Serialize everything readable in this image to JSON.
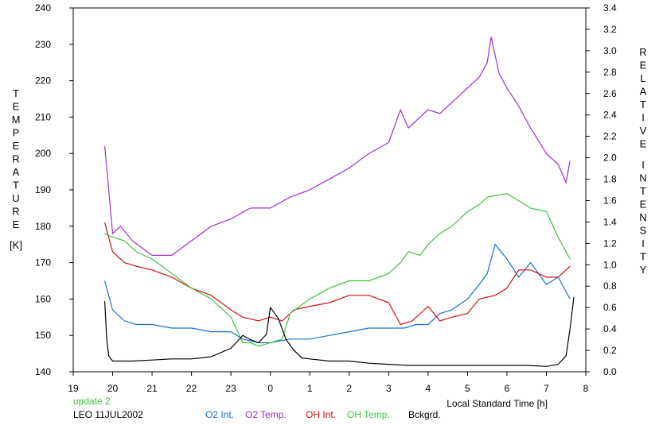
{
  "chart_data": {
    "type": "line",
    "ylabel_left": "TEMPERATURE",
    "ylabel_left_unit": "[K]",
    "ylabel_right": "RELATIVE INTENSITY",
    "xlabel": "Local Standard Time [h]",
    "left_ticks": [
      "140",
      "150",
      "160",
      "170",
      "180",
      "190",
      "200",
      "210",
      "220",
      "230",
      "240"
    ],
    "right_ticks": [
      "0.0",
      "0.2",
      "0.4",
      "0.6",
      "0.8",
      "1.0",
      "1.2",
      "1.4",
      "1.6",
      "1.8",
      "2.0",
      "2.2",
      "2.4",
      "2.6",
      "2.8",
      "3.0",
      "3.2",
      "3.4"
    ],
    "x_ticks": [
      "19",
      "20",
      "21",
      "22",
      "23",
      "0",
      "1",
      "2",
      "3",
      "4",
      "5",
      "6",
      "7",
      "8"
    ],
    "ylim_left": [
      140,
      240
    ],
    "ylim_right": [
      0.0,
      3.4
    ],
    "xlim_hours": [
      19,
      32
    ],
    "grid": false,
    "series": [
      {
        "name": "O2 Int.",
        "color": "#1a6fd0",
        "axis": "left",
        "x": [
          19.8,
          20.0,
          20.3,
          20.6,
          21.0,
          21.5,
          22.0,
          22.5,
          23.0,
          23.3,
          23.7,
          24.0,
          24.5,
          25.0,
          25.5,
          26.0,
          26.5,
          27.0,
          27.4,
          27.7,
          28.0,
          28.3,
          28.6,
          29.0,
          29.3,
          29.5,
          29.7,
          30.0,
          30.3,
          30.6,
          31.0,
          31.3,
          31.6
        ],
        "values": [
          165,
          157,
          154,
          153,
          153,
          152,
          152,
          151,
          151,
          149,
          148,
          148,
          149,
          149,
          150,
          151,
          152,
          152,
          152,
          153,
          153,
          156,
          157,
          160,
          164,
          167,
          175,
          171,
          166,
          170,
          164,
          166,
          160
        ]
      },
      {
        "name": "O2 Temp.",
        "color": "#9b30d0",
        "axis": "left",
        "x": [
          19.8,
          19.9,
          20.0,
          20.2,
          20.5,
          21.0,
          21.5,
          22.0,
          22.5,
          23.0,
          23.5,
          24.0,
          24.5,
          25.0,
          25.5,
          26.0,
          26.5,
          27.0,
          27.3,
          27.5,
          27.8,
          28.0,
          28.3,
          28.6,
          29.0,
          29.3,
          29.5,
          29.6,
          29.8,
          30.0,
          30.3,
          30.6,
          31.0,
          31.3,
          31.5,
          31.6
        ],
        "values": [
          202,
          190,
          178,
          180,
          176,
          172,
          172,
          176,
          180,
          182,
          185,
          185,
          188,
          190,
          193,
          196,
          200,
          203,
          212,
          207,
          210,
          212,
          211,
          214,
          218,
          221,
          225,
          232,
          222,
          218,
          213,
          207,
          200,
          197,
          192,
          198
        ]
      },
      {
        "name": "OH Int.",
        "color": "#d01010",
        "axis": "left",
        "x": [
          19.8,
          20.0,
          20.3,
          20.6,
          21.0,
          21.5,
          22.0,
          22.5,
          23.0,
          23.3,
          23.7,
          24.0,
          24.3,
          24.6,
          25.0,
          25.5,
          26.0,
          26.5,
          27.0,
          27.3,
          27.6,
          28.0,
          28.3,
          28.6,
          29.0,
          29.3,
          29.7,
          30.0,
          30.3,
          30.6,
          31.0,
          31.3,
          31.6
        ],
        "values": [
          181,
          173,
          170,
          169,
          168,
          166,
          163,
          161,
          157,
          155,
          154,
          155,
          154,
          157,
          158,
          159,
          161,
          161,
          159,
          153,
          154,
          158,
          154,
          155,
          156,
          160,
          161,
          163,
          168,
          168,
          166,
          166,
          169
        ]
      },
      {
        "name": "OH Temp.",
        "color": "#3cc43c",
        "axis": "left",
        "x": [
          19.8,
          20.0,
          20.3,
          20.6,
          21.0,
          21.5,
          22.0,
          22.5,
          23.0,
          23.3,
          23.5,
          23.7,
          24.0,
          24.3,
          24.5,
          25.0,
          25.5,
          26.0,
          26.5,
          27.0,
          27.3,
          27.5,
          27.8,
          28.0,
          28.3,
          28.6,
          29.0,
          29.3,
          29.5,
          30.0,
          30.3,
          30.6,
          31.0,
          31.3,
          31.6
        ],
        "values": [
          178,
          177,
          176,
          173,
          171,
          167,
          163,
          160,
          155,
          148,
          148,
          147,
          148,
          149,
          156,
          160,
          163,
          165,
          165,
          167,
          170,
          173,
          172,
          175,
          178,
          180,
          184,
          186,
          188,
          189,
          187,
          185,
          184,
          177,
          171
        ]
      },
      {
        "name": "Bckgrd.",
        "color": "#000000",
        "axis": "right",
        "x": [
          19.8,
          19.85,
          19.9,
          20.0,
          20.5,
          21.0,
          21.5,
          22.0,
          22.5,
          23.0,
          23.3,
          23.5,
          23.7,
          23.9,
          24.0,
          24.2,
          24.4,
          24.6,
          24.8,
          25.0,
          25.5,
          26.0,
          26.5,
          27.0,
          27.5,
          28.0,
          28.5,
          29.0,
          29.5,
          30.0,
          30.5,
          31.0,
          31.3,
          31.5,
          31.6,
          31.7
        ],
        "values": [
          0.66,
          0.3,
          0.15,
          0.1,
          0.1,
          0.11,
          0.12,
          0.12,
          0.14,
          0.22,
          0.34,
          0.3,
          0.27,
          0.35,
          0.6,
          0.5,
          0.3,
          0.2,
          0.13,
          0.12,
          0.1,
          0.1,
          0.08,
          0.07,
          0.06,
          0.06,
          0.06,
          0.06,
          0.06,
          0.06,
          0.06,
          0.05,
          0.07,
          0.15,
          0.4,
          0.7
        ]
      }
    ]
  },
  "footer": {
    "update_label": "update 2",
    "update_color": "#33cc33",
    "station_date": "LEO 11JUL2002",
    "legend": [
      {
        "label": "O2 Int.",
        "color": "#1a6fd0"
      },
      {
        "label": "O2 Temp.",
        "color": "#9b30d0"
      },
      {
        "label": "OH Int.",
        "color": "#d01010"
      },
      {
        "label": "OH Temp.",
        "color": "#3cc43c"
      },
      {
        "label": "Bckgrd.",
        "color": "#000000"
      }
    ]
  }
}
